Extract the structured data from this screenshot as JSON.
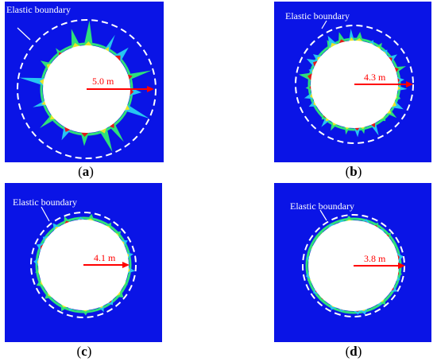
{
  "colors": {
    "background_field": "#0a14e6",
    "plastic_zone_green": "#2fe07a",
    "plastic_zone_cyan": "#26c6f0",
    "plastic_zone_yellow": "#e6e62a",
    "plastic_zone_red": "#e01a1a",
    "arrow_red": "#ff0000",
    "boundary_dashed": "#ffffff",
    "opening_fill": "#ffffff"
  },
  "panels": [
    {
      "id": "a",
      "label": "Elastic boundary",
      "radius_label": "5.0 m",
      "caption_open": "(",
      "caption_letter": "a",
      "caption_close": ")"
    },
    {
      "id": "b",
      "label": "Elastic boundary",
      "radius_label": "4.3 m",
      "caption_open": "(",
      "caption_letter": "b",
      "caption_close": ")"
    },
    {
      "id": "c",
      "label": "Elastic boundary",
      "radius_label": "4.1 m",
      "caption_open": "(",
      "caption_letter": "c",
      "caption_close": ")"
    },
    {
      "id": "d",
      "label": "Elastic boundary",
      "radius_label": "3.8 m",
      "caption_open": "(",
      "caption_letter": "d",
      "caption_close": ")"
    }
  ]
}
